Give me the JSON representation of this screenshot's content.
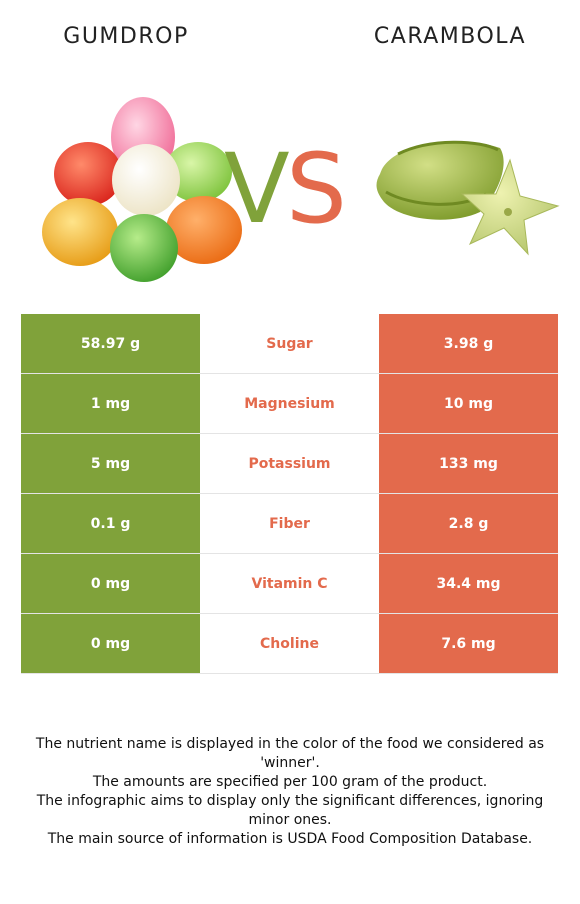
{
  "header": {
    "left_food": "GUMDROP",
    "right_food": "CARAMBOLA",
    "vs_text": "VS"
  },
  "colors": {
    "left_accent": "#80a23a",
    "right_accent": "#e36a4c"
  },
  "rows": [
    {
      "nutrient": "Sugar",
      "left": "58.97 g",
      "right": "3.98 g"
    },
    {
      "nutrient": "Magnesium",
      "left": "1 mg",
      "right": "10 mg"
    },
    {
      "nutrient": "Potassium",
      "left": "5 mg",
      "right": "133 mg"
    },
    {
      "nutrient": "Fiber",
      "left": "0.1 g",
      "right": "2.8 g"
    },
    {
      "nutrient": "Vitamin C",
      "left": "0 mg",
      "right": "34.4 mg"
    },
    {
      "nutrient": "Choline",
      "left": "0 mg",
      "right": "7.6 mg"
    }
  ],
  "footer": [
    "The nutrient name is displayed in the color of the food we considered as 'winner'.",
    "The amounts are specified per 100 gram of the product.",
    "The infographic aims to display only the significant differences, ignoring minor ones.",
    "The main source of information is USDA Food Composition Database."
  ]
}
